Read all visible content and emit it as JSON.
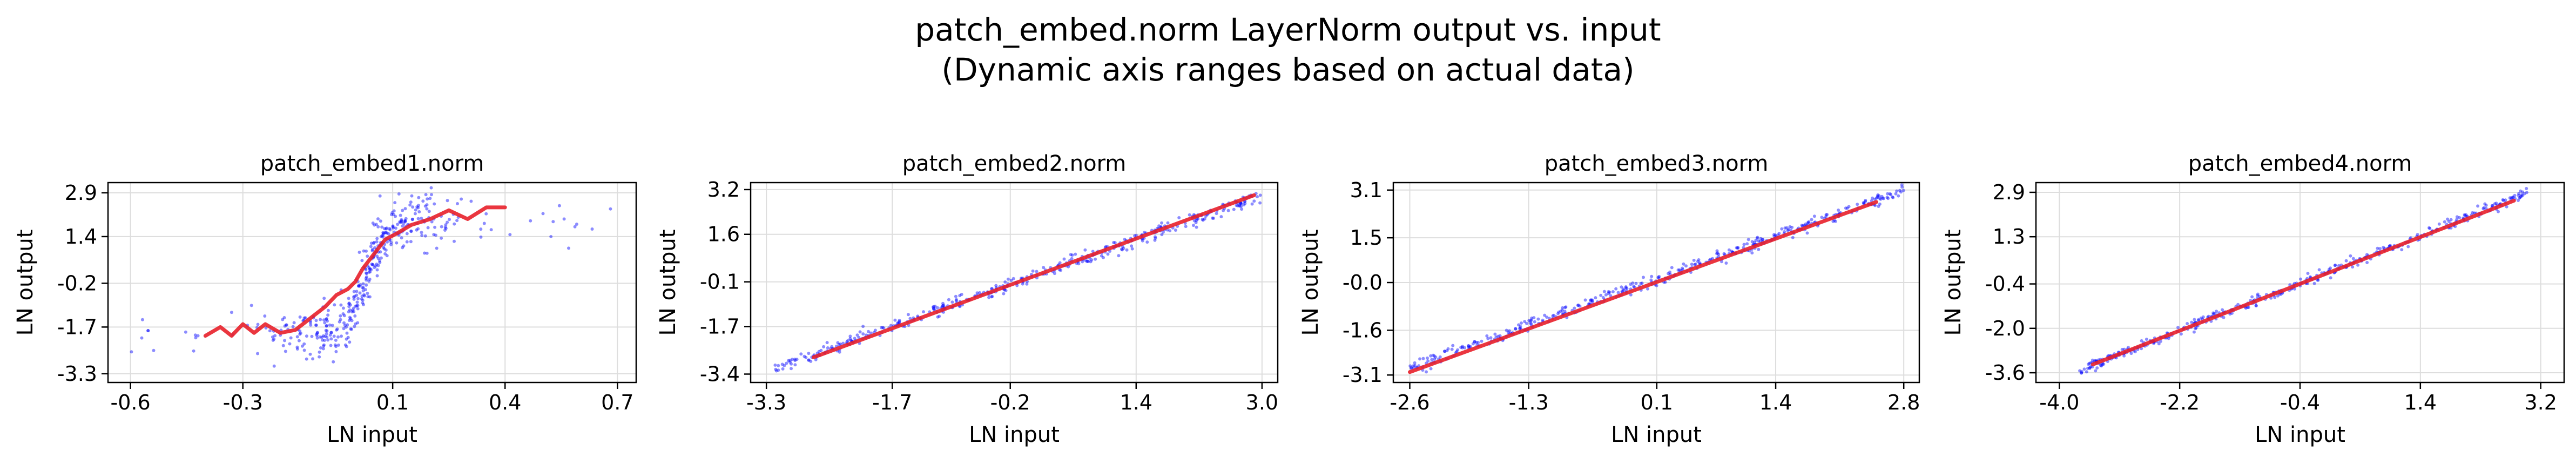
{
  "figure": {
    "title_line1": "patch_embed.norm LayerNorm output vs. input",
    "title_line2": "(Dynamic axis ranges based on actual data)"
  },
  "colors": {
    "scatter": "#0000ff",
    "trend": "#e8202a",
    "grid": "#dddddd",
    "axis": "#000000"
  },
  "chart_data": [
    {
      "type": "scatter",
      "title": "patch_embed1.norm",
      "xlabel": "LN input",
      "ylabel": "LN output",
      "xlim": [
        -0.66,
        0.75
      ],
      "ylim": [
        -3.6,
        3.25
      ],
      "xticks": [
        "-0.6",
        "-0.3",
        "0.1",
        "0.4",
        "0.7"
      ],
      "xtick_values": [
        -0.6,
        -0.3,
        0.1,
        0.4,
        0.7
      ],
      "yticks": [
        "2.9",
        "1.4",
        "-0.2",
        "-1.7",
        "-3.3"
      ],
      "ytick_values": [
        2.9,
        1.4,
        -0.2,
        -1.7,
        -3.3
      ],
      "grid": true,
      "scatter_model": {
        "shape": "tanh",
        "x0": 0.03,
        "width": 0.06,
        "amp": 2.0,
        "noise": 0.45,
        "xrange": [
          -0.6,
          0.7
        ]
      },
      "trend": {
        "x": [
          -0.4,
          -0.36,
          -0.33,
          -0.3,
          -0.27,
          -0.24,
          -0.2,
          -0.16,
          -0.12,
          -0.08,
          -0.05,
          -0.02,
          0.0,
          0.02,
          0.05,
          0.08,
          0.11,
          0.15,
          0.2,
          0.25,
          0.3,
          0.35,
          0.4
        ],
        "y": [
          -2.0,
          -1.7,
          -2.0,
          -1.6,
          -1.9,
          -1.6,
          -1.9,
          -1.8,
          -1.4,
          -1.0,
          -0.6,
          -0.4,
          -0.15,
          0.3,
          0.8,
          1.3,
          1.5,
          1.8,
          2.0,
          2.3,
          2.0,
          2.4,
          2.4
        ]
      }
    },
    {
      "type": "scatter",
      "title": "patch_embed2.norm",
      "xlabel": "LN input",
      "ylabel": "LN output",
      "xlim": [
        -3.5,
        3.2
      ],
      "ylim": [
        -3.7,
        3.45
      ],
      "xticks": [
        "-3.3",
        "-1.7",
        "-0.2",
        "1.4",
        "3.0"
      ],
      "xtick_values": [
        -3.3,
        -1.7,
        -0.2,
        1.4,
        3.0
      ],
      "yticks": [
        "3.2",
        "1.6",
        "-0.1",
        "-1.7",
        "-3.4"
      ],
      "ytick_values": [
        3.2,
        1.6,
        -0.1,
        -1.7,
        -3.4
      ],
      "grid": true,
      "scatter_model": {
        "shape": "linear",
        "slope": 1.0,
        "noise": 0.12,
        "xrange": [
          -3.2,
          3.0
        ]
      },
      "trend": {
        "x": [
          -2.7,
          2.9
        ],
        "y": [
          -2.8,
          3.0
        ]
      }
    },
    {
      "type": "scatter",
      "title": "patch_embed3.norm",
      "xlabel": "LN input",
      "ylabel": "LN output",
      "xlim": [
        -2.78,
        2.97
      ],
      "ylim": [
        -3.35,
        3.35
      ],
      "xticks": [
        "-2.6",
        "-1.3",
        "0.1",
        "1.4",
        "2.8"
      ],
      "xtick_values": [
        -2.6,
        -1.3,
        0.1,
        1.4,
        2.8
      ],
      "yticks": [
        "3.1",
        "1.5",
        "-0.0",
        "-1.6",
        "-3.1"
      ],
      "ytick_values": [
        3.1,
        1.5,
        0.0,
        -1.6,
        -3.1
      ],
      "grid": true,
      "scatter_model": {
        "shape": "linear",
        "slope": 1.1,
        "noise": 0.1,
        "xrange": [
          -2.6,
          2.8
        ]
      },
      "trend": {
        "x": [
          -2.6,
          2.5
        ],
        "y": [
          -3.0,
          2.7
        ]
      }
    },
    {
      "type": "scatter",
      "title": "patch_embed4.norm",
      "xlabel": "LN input",
      "ylabel": "LN output",
      "xlim": [
        -4.35,
        3.55
      ],
      "ylim": [
        -3.95,
        3.25
      ],
      "xticks": [
        "-4.0",
        "-2.2",
        "-0.4",
        "1.4",
        "3.2"
      ],
      "xtick_values": [
        -4.0,
        -2.2,
        -0.4,
        1.4,
        3.2
      ],
      "yticks": [
        "2.9",
        "1.3",
        "-0.4",
        "-2.0",
        "-3.6"
      ],
      "ytick_values": [
        2.9,
        1.3,
        -0.4,
        -2.0,
        -3.6
      ],
      "grid": true,
      "scatter_model": {
        "shape": "linear",
        "slope": 0.95,
        "noise": 0.1,
        "xrange": [
          -3.7,
          3.0
        ]
      },
      "trend": {
        "x": [
          -3.5,
          2.8
        ],
        "y": [
          -3.3,
          2.6
        ]
      }
    }
  ]
}
